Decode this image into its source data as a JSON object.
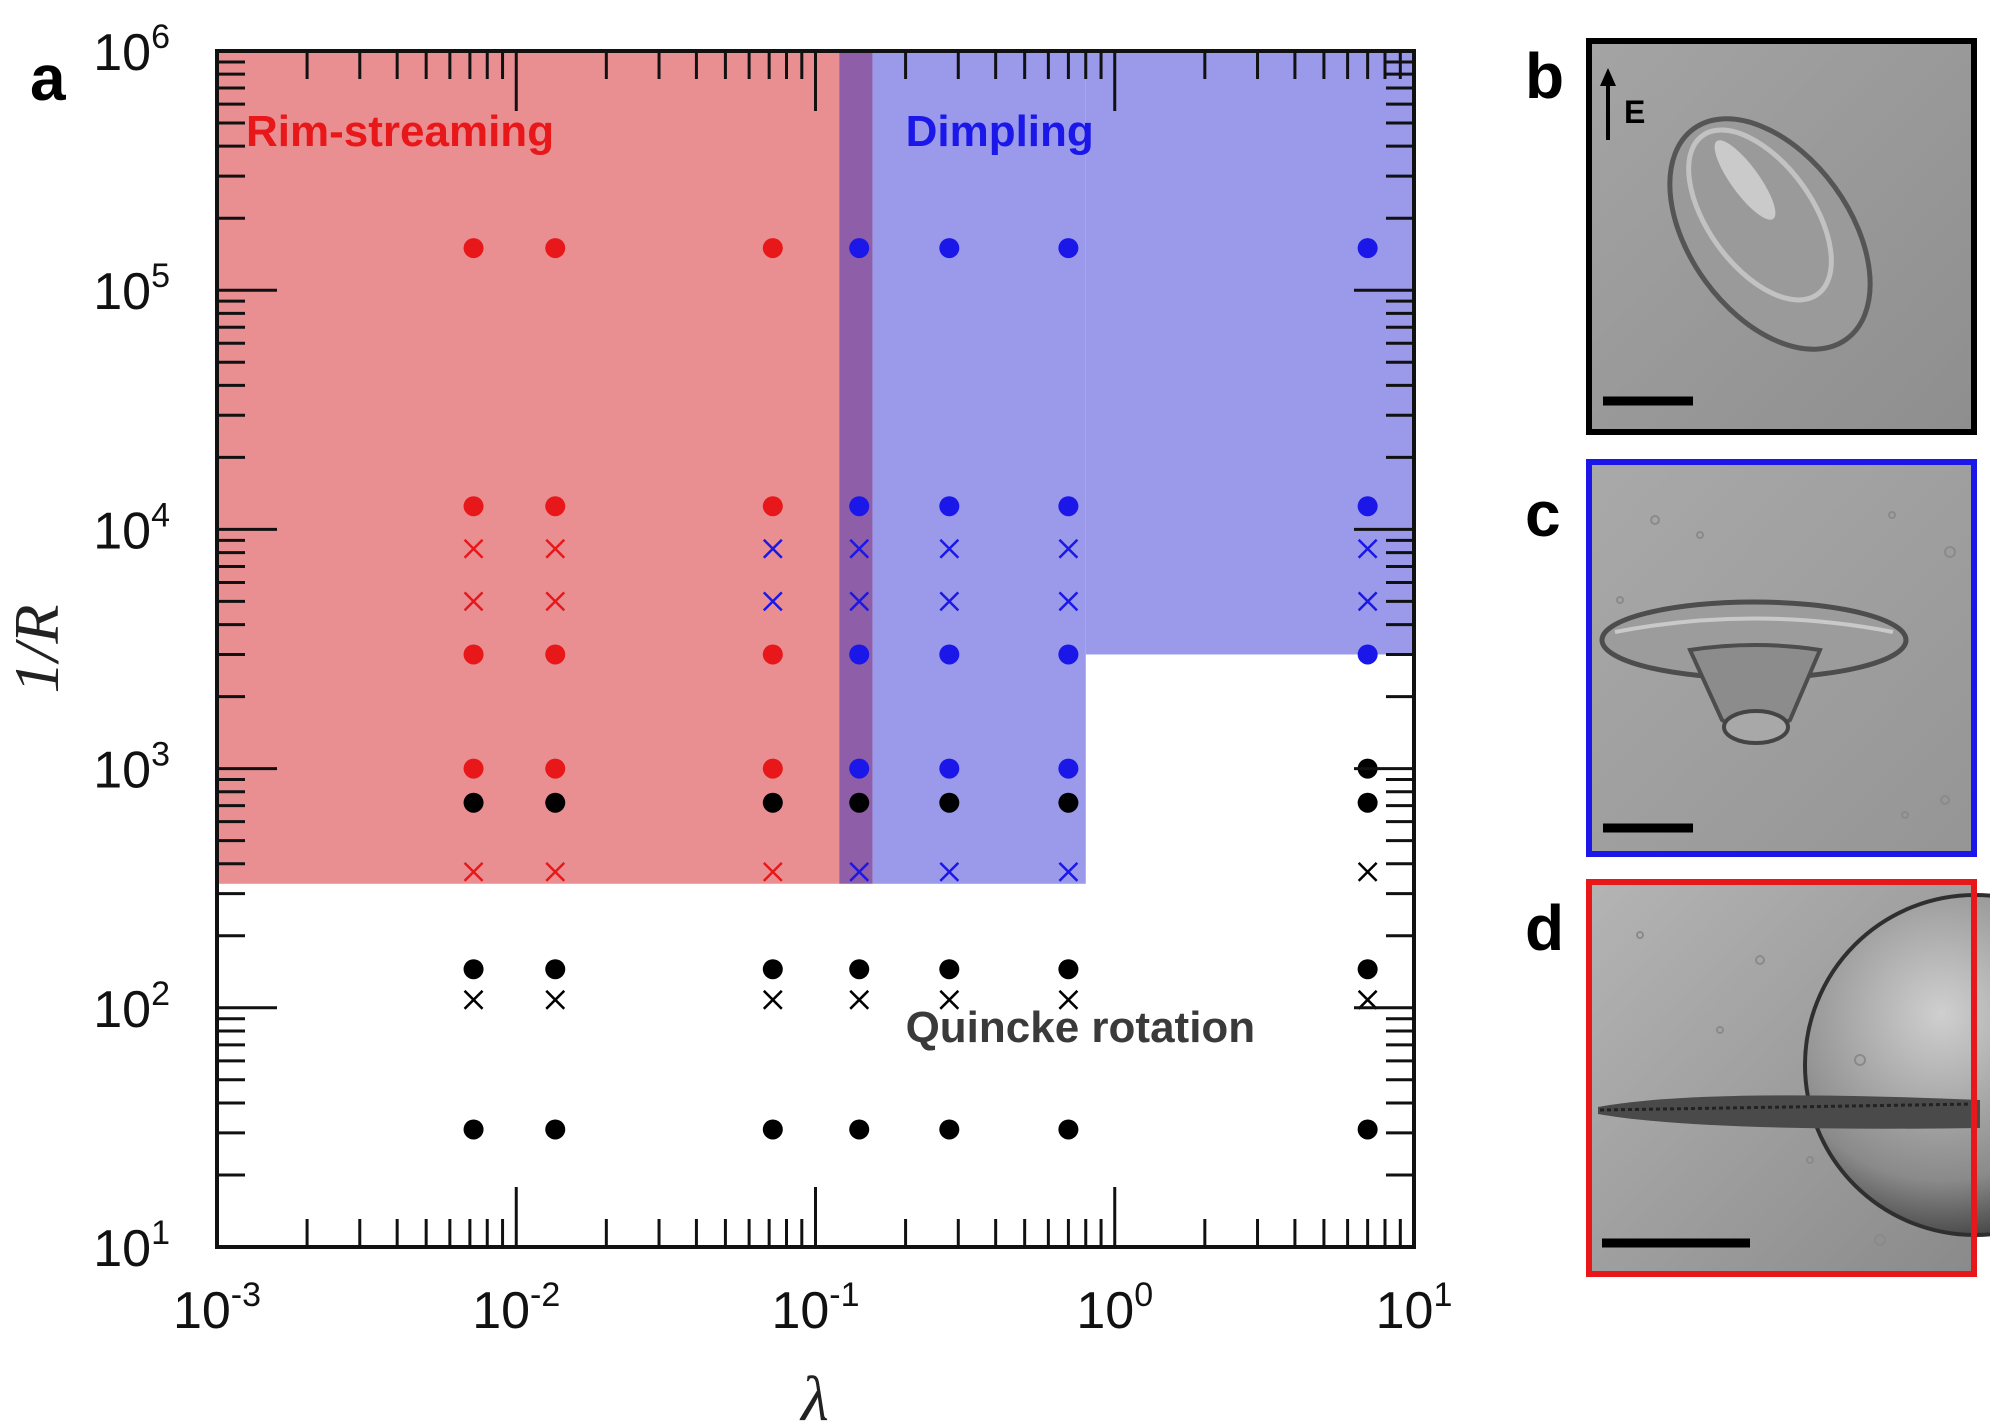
{
  "panel_labels": {
    "a": "a",
    "b": "b",
    "c": "c",
    "d": "d"
  },
  "inset_b_arrow_label": "E",
  "colors": {
    "rim": "#e8171a",
    "dimpling": "#1a17e8",
    "quincke": "#000000",
    "rim_region": "#e98f92",
    "dimpling_region": "#9a99ea",
    "overlap_region": "#8f5ea8",
    "frame_b": "#000000",
    "frame_c": "#1a17e8",
    "frame_d": "#e8171a"
  },
  "chart_data": {
    "type": "scatter",
    "xscale": "log",
    "yscale": "log",
    "xlim": [
      0.001,
      10
    ],
    "ylim": [
      10,
      1000000
    ],
    "xlabel": "λ",
    "ylabel": "1/R",
    "x_ticks": [
      {
        "base": "10",
        "exp": "-3"
      },
      {
        "base": "10",
        "exp": "-2"
      },
      {
        "base": "10",
        "exp": "-1"
      },
      {
        "base": "10",
        "exp": "0"
      },
      {
        "base": "10",
        "exp": "1"
      }
    ],
    "y_ticks": [
      {
        "base": "10",
        "exp": "1"
      },
      {
        "base": "10",
        "exp": "2"
      },
      {
        "base": "10",
        "exp": "3"
      },
      {
        "base": "10",
        "exp": "4"
      },
      {
        "base": "10",
        "exp": "5"
      },
      {
        "base": "10",
        "exp": "6"
      }
    ],
    "regions": [
      {
        "name": "Rim-streaming",
        "color_key": "rim",
        "fill_key": "rim_region",
        "x": [
          0.001,
          0.12
        ],
        "y": [
          330,
          1000000
        ]
      },
      {
        "name": "Dimpling",
        "color_key": "dimpling",
        "fill_key": "dimpling_region",
        "x": [
          0.155,
          0.8
        ],
        "y": [
          330,
          1000000
        ]
      },
      {
        "name": "",
        "fill_key": "dimpling_region",
        "x": [
          0.8,
          10
        ],
        "y": [
          3000,
          1000000
        ]
      },
      {
        "name": "",
        "fill_key": "overlap_region",
        "x": [
          0.12,
          0.155
        ],
        "y": [
          330,
          1000000
        ]
      }
    ],
    "region_labels": [
      {
        "text": "Rim-streaming",
        "color_key": "rim",
        "x": 0.00125,
        "y": 400000
      },
      {
        "text": "Dimpling",
        "color_key": "dimpling",
        "x": 0.2,
        "y": 400000
      },
      {
        "text": "Quincke rotation",
        "color_key": "quincke",
        "x": 0.2,
        "y": 72
      }
    ],
    "series": [
      {
        "name": "Rim-streaming",
        "color_key": "rim",
        "points": [
          {
            "x": 0.0072,
            "y": 150000,
            "m": "o"
          },
          {
            "x": 0.0072,
            "y": 12500,
            "m": "o"
          },
          {
            "x": 0.0072,
            "y": 8300,
            "m": "x"
          },
          {
            "x": 0.0072,
            "y": 5000,
            "m": "x"
          },
          {
            "x": 0.0072,
            "y": 3000,
            "m": "o"
          },
          {
            "x": 0.0072,
            "y": 1000,
            "m": "o"
          },
          {
            "x": 0.0072,
            "y": 370,
            "m": "x"
          },
          {
            "x": 0.0135,
            "y": 150000,
            "m": "o"
          },
          {
            "x": 0.0135,
            "y": 12500,
            "m": "o"
          },
          {
            "x": 0.0135,
            "y": 8300,
            "m": "x"
          },
          {
            "x": 0.0135,
            "y": 5000,
            "m": "x"
          },
          {
            "x": 0.0135,
            "y": 3000,
            "m": "o"
          },
          {
            "x": 0.0135,
            "y": 1000,
            "m": "o"
          },
          {
            "x": 0.0135,
            "y": 370,
            "m": "x"
          },
          {
            "x": 0.072,
            "y": 150000,
            "m": "o"
          },
          {
            "x": 0.072,
            "y": 12500,
            "m": "o"
          },
          {
            "x": 0.072,
            "y": 3000,
            "m": "o"
          },
          {
            "x": 0.072,
            "y": 1000,
            "m": "o"
          },
          {
            "x": 0.072,
            "y": 370,
            "m": "x"
          }
        ]
      },
      {
        "name": "Dimpling",
        "color_key": "dimpling",
        "points": [
          {
            "x": 0.072,
            "y": 8300,
            "m": "x"
          },
          {
            "x": 0.072,
            "y": 5000,
            "m": "x"
          },
          {
            "x": 0.14,
            "y": 150000,
            "m": "o"
          },
          {
            "x": 0.14,
            "y": 12500,
            "m": "o"
          },
          {
            "x": 0.14,
            "y": 8300,
            "m": "x"
          },
          {
            "x": 0.14,
            "y": 5000,
            "m": "x"
          },
          {
            "x": 0.14,
            "y": 3000,
            "m": "o"
          },
          {
            "x": 0.14,
            "y": 1000,
            "m": "o"
          },
          {
            "x": 0.14,
            "y": 370,
            "m": "x"
          },
          {
            "x": 0.28,
            "y": 150000,
            "m": "o"
          },
          {
            "x": 0.28,
            "y": 12500,
            "m": "o"
          },
          {
            "x": 0.28,
            "y": 8300,
            "m": "x"
          },
          {
            "x": 0.28,
            "y": 5000,
            "m": "x"
          },
          {
            "x": 0.28,
            "y": 3000,
            "m": "o"
          },
          {
            "x": 0.28,
            "y": 1000,
            "m": "o"
          },
          {
            "x": 0.28,
            "y": 370,
            "m": "x"
          },
          {
            "x": 0.7,
            "y": 150000,
            "m": "o"
          },
          {
            "x": 0.7,
            "y": 12500,
            "m": "o"
          },
          {
            "x": 0.7,
            "y": 8300,
            "m": "x"
          },
          {
            "x": 0.7,
            "y": 5000,
            "m": "x"
          },
          {
            "x": 0.7,
            "y": 3000,
            "m": "o"
          },
          {
            "x": 0.7,
            "y": 1000,
            "m": "o"
          },
          {
            "x": 0.7,
            "y": 370,
            "m": "x"
          },
          {
            "x": 7,
            "y": 150000,
            "m": "o"
          },
          {
            "x": 7,
            "y": 12500,
            "m": "o"
          },
          {
            "x": 7,
            "y": 8300,
            "m": "x"
          },
          {
            "x": 7,
            "y": 5000,
            "m": "x"
          },
          {
            "x": 7,
            "y": 3000,
            "m": "o"
          }
        ]
      },
      {
        "name": "Quincke rotation",
        "color_key": "quincke",
        "points": [
          {
            "x": 0.0072,
            "y": 720,
            "m": "o"
          },
          {
            "x": 0.0072,
            "y": 145,
            "m": "o"
          },
          {
            "x": 0.0072,
            "y": 108,
            "m": "x"
          },
          {
            "x": 0.0072,
            "y": 31,
            "m": "o"
          },
          {
            "x": 0.0135,
            "y": 720,
            "m": "o"
          },
          {
            "x": 0.0135,
            "y": 145,
            "m": "o"
          },
          {
            "x": 0.0135,
            "y": 108,
            "m": "x"
          },
          {
            "x": 0.0135,
            "y": 31,
            "m": "o"
          },
          {
            "x": 0.072,
            "y": 720,
            "m": "o"
          },
          {
            "x": 0.072,
            "y": 145,
            "m": "o"
          },
          {
            "x": 0.072,
            "y": 108,
            "m": "x"
          },
          {
            "x": 0.072,
            "y": 31,
            "m": "o"
          },
          {
            "x": 0.14,
            "y": 720,
            "m": "o"
          },
          {
            "x": 0.14,
            "y": 145,
            "m": "o"
          },
          {
            "x": 0.14,
            "y": 108,
            "m": "x"
          },
          {
            "x": 0.14,
            "y": 31,
            "m": "o"
          },
          {
            "x": 0.28,
            "y": 720,
            "m": "o"
          },
          {
            "x": 0.28,
            "y": 145,
            "m": "o"
          },
          {
            "x": 0.28,
            "y": 108,
            "m": "x"
          },
          {
            "x": 0.28,
            "y": 31,
            "m": "o"
          },
          {
            "x": 0.7,
            "y": 720,
            "m": "o"
          },
          {
            "x": 0.7,
            "y": 145,
            "m": "o"
          },
          {
            "x": 0.7,
            "y": 108,
            "m": "x"
          },
          {
            "x": 0.7,
            "y": 31,
            "m": "o"
          },
          {
            "x": 7,
            "y": 1000,
            "m": "o"
          },
          {
            "x": 7,
            "y": 720,
            "m": "o"
          },
          {
            "x": 7,
            "y": 370,
            "m": "x"
          },
          {
            "x": 7,
            "y": 145,
            "m": "o"
          },
          {
            "x": 7,
            "y": 108,
            "m": "x"
          },
          {
            "x": 7,
            "y": 31,
            "m": "o"
          }
        ]
      }
    ]
  }
}
